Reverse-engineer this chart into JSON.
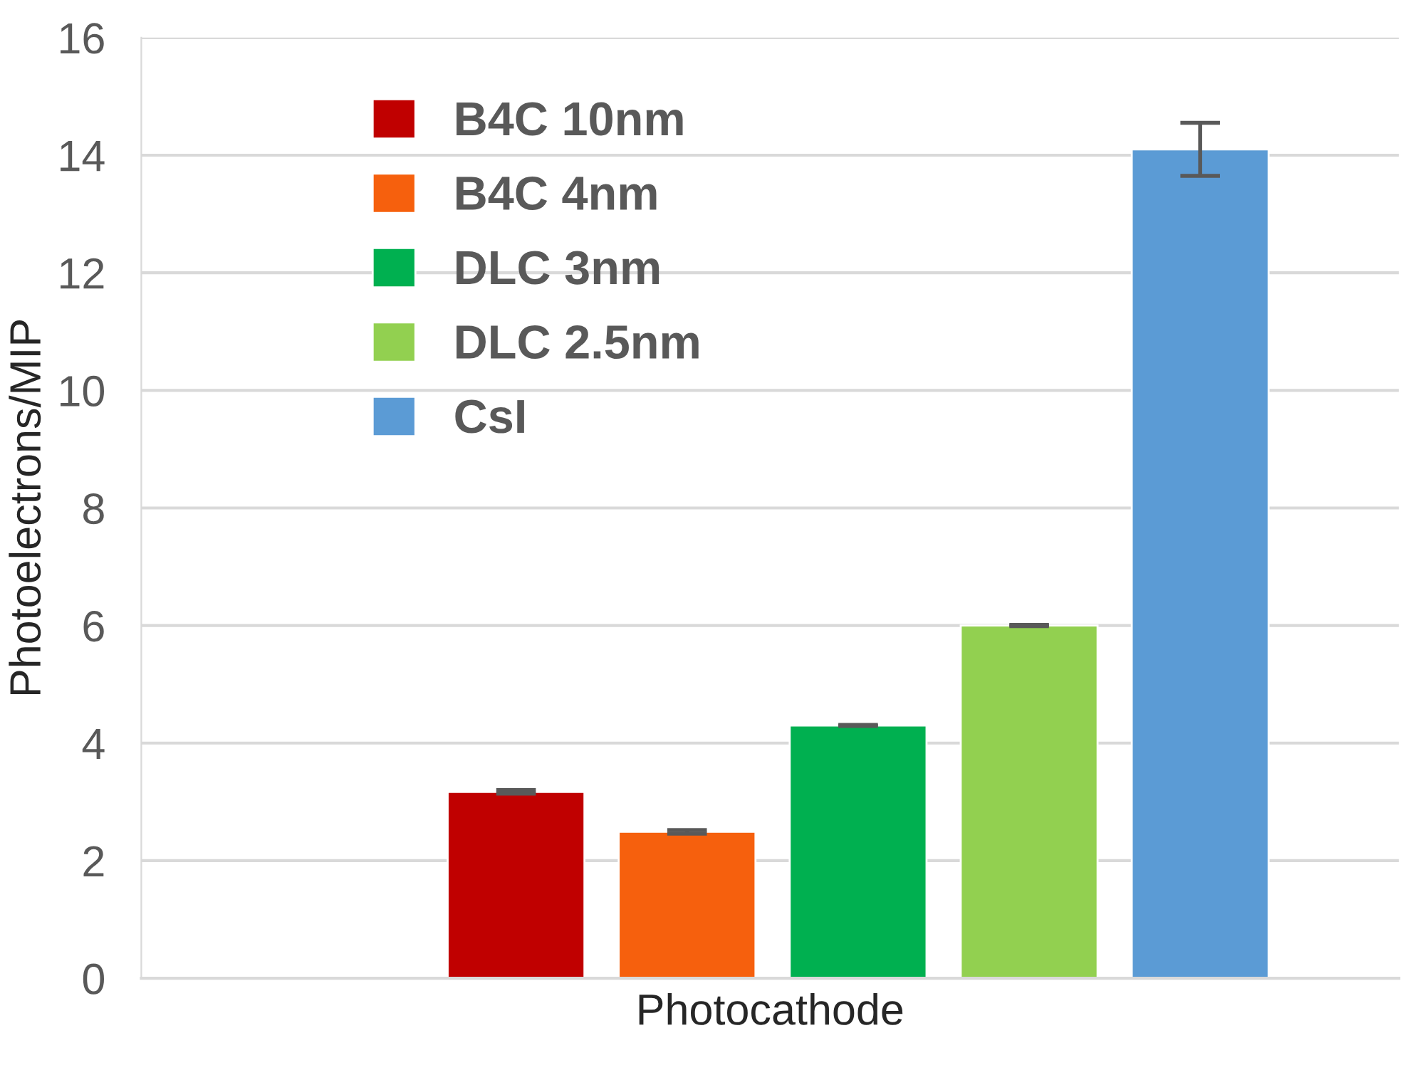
{
  "chart_data": {
    "type": "bar",
    "xlabel": "Photocathode",
    "ylabel": "Photoelectrons/MIP",
    "categories": [
      null
    ],
    "series": [
      {
        "name": "B4C 10nm",
        "color": "#c00000",
        "values": [
          3.17
        ],
        "errors": [
          0.03
        ]
      },
      {
        "name": "B4C 4nm",
        "color": "#f6600d",
        "values": [
          2.49
        ],
        "errors": [
          0.03
        ]
      },
      {
        "name": "DLC 3nm",
        "color": "#00b050",
        "values": [
          4.3
        ],
        "errors": [
          0.01
        ]
      },
      {
        "name": "DLC 2.5nm",
        "color": "#92d050",
        "values": [
          6.0
        ],
        "errors": [
          0.01
        ]
      },
      {
        "name": "CsI",
        "color": "#5b9bd5",
        "values": [
          14.1
        ],
        "errors": [
          0.45
        ]
      }
    ],
    "ylim": [
      0,
      16
    ],
    "yticks": [
      0,
      2,
      4,
      6,
      8,
      10,
      12,
      14,
      16
    ],
    "grid": "y",
    "legend": "top left"
  }
}
